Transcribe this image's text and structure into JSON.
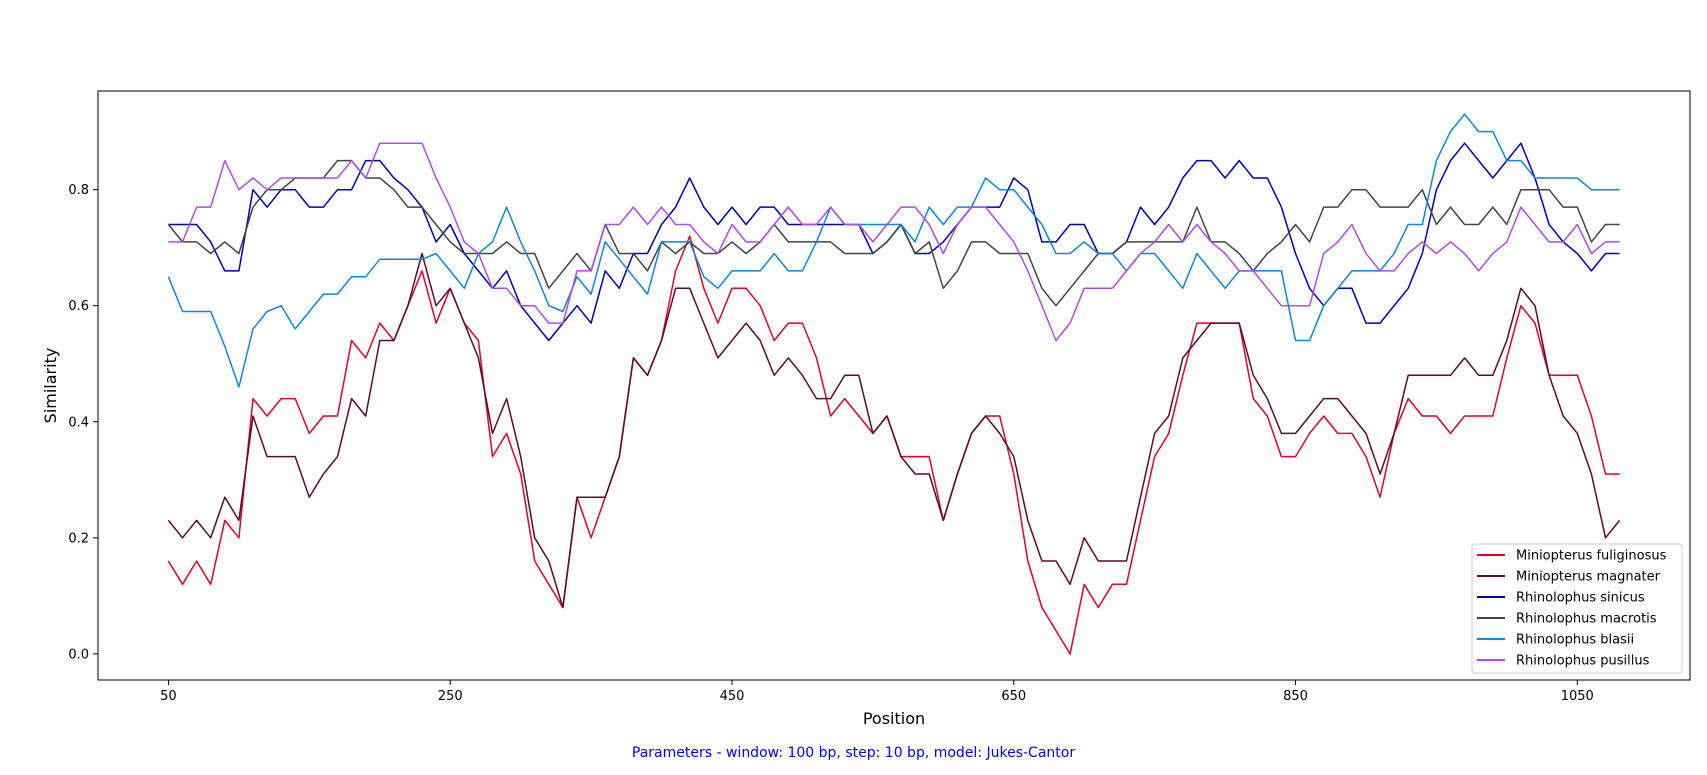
{
  "chart_data": {
    "type": "line",
    "title": "",
    "xlabel": "Position",
    "ylabel": "Similarity",
    "xlim": [
      0,
      1130
    ],
    "ylim": [
      -0.045,
      0.97
    ],
    "xticks": [
      50,
      250,
      450,
      650,
      850,
      1050
    ],
    "yticks": [
      0.0,
      0.2,
      0.4,
      0.6,
      0.8
    ],
    "grid": false,
    "legend_position": "lower-right",
    "x": [
      50,
      60,
      70,
      80,
      90,
      100,
      110,
      120,
      130,
      140,
      150,
      160,
      170,
      180,
      190,
      200,
      210,
      220,
      230,
      240,
      250,
      260,
      270,
      280,
      290,
      300,
      310,
      320,
      330,
      340,
      350,
      360,
      370,
      380,
      390,
      400,
      410,
      420,
      430,
      440,
      450,
      460,
      470,
      480,
      490,
      500,
      510,
      520,
      530,
      540,
      550,
      560,
      570,
      580,
      590,
      600,
      610,
      620,
      630,
      640,
      650,
      660,
      670,
      680,
      690,
      700,
      710,
      720,
      730,
      740,
      750,
      760,
      770,
      780,
      790,
      800,
      810,
      820,
      830,
      840,
      850,
      860,
      870,
      880,
      890,
      900,
      910,
      920,
      930,
      940,
      950,
      960,
      970,
      980,
      990,
      1000,
      1010,
      1020,
      1030,
      1040,
      1050,
      1060,
      1070,
      1080
    ],
    "series": [
      {
        "name": "Miniopterus fuliginosus",
        "color": "#e3002a",
        "values": [
          0.16,
          0.12,
          0.16,
          0.12,
          0.23,
          0.2,
          0.44,
          0.41,
          0.44,
          0.44,
          0.38,
          0.41,
          0.41,
          0.54,
          0.51,
          0.57,
          0.54,
          0.6,
          0.66,
          0.57,
          0.63,
          0.57,
          0.54,
          0.34,
          0.38,
          0.31,
          0.16,
          0.12,
          0.08,
          0.27,
          0.2,
          0.27,
          0.34,
          0.51,
          0.48,
          0.54,
          0.66,
          0.72,
          0.63,
          0.57,
          0.63,
          0.63,
          0.6,
          0.54,
          0.57,
          0.57,
          0.51,
          0.41,
          0.44,
          0.41,
          0.38,
          0.41,
          0.34,
          0.34,
          0.34,
          0.23,
          0.31,
          0.38,
          0.41,
          0.41,
          0.31,
          0.16,
          0.08,
          0.04,
          0.0,
          0.12,
          0.08,
          0.12,
          0.12,
          0.23,
          0.34,
          0.38,
          0.48,
          0.57,
          0.57,
          0.57,
          0.57,
          0.44,
          0.41,
          0.34,
          0.34,
          0.38,
          0.41,
          0.38,
          0.38,
          0.34,
          0.27,
          0.38,
          0.44,
          0.41,
          0.41,
          0.38,
          0.41,
          0.41,
          0.41,
          0.51,
          0.6,
          0.57,
          0.48,
          0.48,
          0.48,
          0.41,
          0.31,
          0.31
        ]
      },
      {
        "name": "Miniopterus magnater",
        "color": "#5e0a2e",
        "values": [
          0.23,
          0.2,
          0.23,
          0.2,
          0.27,
          0.23,
          0.41,
          0.34,
          0.34,
          0.34,
          0.27,
          0.31,
          0.34,
          0.44,
          0.41,
          0.54,
          0.54,
          0.6,
          0.69,
          0.6,
          0.63,
          0.57,
          0.51,
          0.38,
          0.44,
          0.34,
          0.2,
          0.16,
          0.08,
          0.27,
          0.27,
          0.27,
          0.34,
          0.51,
          0.48,
          0.54,
          0.63,
          0.63,
          0.57,
          0.51,
          0.54,
          0.57,
          0.54,
          0.48,
          0.51,
          0.48,
          0.44,
          0.44,
          0.48,
          0.48,
          0.38,
          0.41,
          0.34,
          0.31,
          0.31,
          0.23,
          0.31,
          0.38,
          0.41,
          0.38,
          0.34,
          0.23,
          0.16,
          0.16,
          0.12,
          0.2,
          0.16,
          0.16,
          0.16,
          0.27,
          0.38,
          0.41,
          0.51,
          0.54,
          0.57,
          0.57,
          0.57,
          0.48,
          0.44,
          0.38,
          0.38,
          0.41,
          0.44,
          0.44,
          0.41,
          0.38,
          0.31,
          0.38,
          0.48,
          0.48,
          0.48,
          0.48,
          0.51,
          0.48,
          0.48,
          0.54,
          0.63,
          0.6,
          0.48,
          0.41,
          0.38,
          0.31,
          0.2,
          0.23
        ]
      },
      {
        "name": "Rhinolophus sinicus",
        "color": "#0000b4",
        "values": [
          0.74,
          0.74,
          0.74,
          0.71,
          0.66,
          0.66,
          0.8,
          0.77,
          0.8,
          0.8,
          0.77,
          0.77,
          0.8,
          0.8,
          0.85,
          0.85,
          0.82,
          0.8,
          0.77,
          0.71,
          0.74,
          0.69,
          0.66,
          0.63,
          0.66,
          0.6,
          0.57,
          0.54,
          0.57,
          0.6,
          0.57,
          0.66,
          0.63,
          0.69,
          0.69,
          0.74,
          0.77,
          0.82,
          0.77,
          0.74,
          0.77,
          0.74,
          0.77,
          0.77,
          0.74,
          0.74,
          0.74,
          0.74,
          0.74,
          0.74,
          0.69,
          0.71,
          0.74,
          0.69,
          0.69,
          0.71,
          0.74,
          0.77,
          0.77,
          0.77,
          0.82,
          0.8,
          0.71,
          0.71,
          0.74,
          0.74,
          0.69,
          0.69,
          0.71,
          0.77,
          0.74,
          0.77,
          0.82,
          0.85,
          0.85,
          0.82,
          0.85,
          0.82,
          0.82,
          0.77,
          0.69,
          0.63,
          0.6,
          0.63,
          0.63,
          0.57,
          0.57,
          0.6,
          0.63,
          0.69,
          0.8,
          0.85,
          0.88,
          0.85,
          0.82,
          0.85,
          0.88,
          0.82,
          0.74,
          0.71,
          0.69,
          0.66,
          0.69,
          0.69
        ]
      },
      {
        "name": "Rhinolophus macrotis",
        "color": "#444448",
        "values": [
          0.74,
          0.71,
          0.71,
          0.69,
          0.71,
          0.69,
          0.77,
          0.8,
          0.8,
          0.82,
          0.82,
          0.82,
          0.85,
          0.85,
          0.82,
          0.82,
          0.8,
          0.77,
          0.77,
          0.74,
          0.71,
          0.69,
          0.69,
          0.69,
          0.71,
          0.69,
          0.69,
          0.63,
          0.66,
          0.69,
          0.66,
          0.74,
          0.69,
          0.69,
          0.66,
          0.71,
          0.69,
          0.71,
          0.69,
          0.69,
          0.71,
          0.69,
          0.71,
          0.74,
          0.71,
          0.71,
          0.71,
          0.71,
          0.69,
          0.69,
          0.69,
          0.71,
          0.74,
          0.69,
          0.71,
          0.63,
          0.66,
          0.71,
          0.71,
          0.69,
          0.69,
          0.69,
          0.63,
          0.6,
          0.63,
          0.66,
          0.69,
          0.69,
          0.71,
          0.71,
          0.71,
          0.71,
          0.71,
          0.77,
          0.71,
          0.71,
          0.69,
          0.66,
          0.69,
          0.71,
          0.74,
          0.71,
          0.77,
          0.77,
          0.8,
          0.8,
          0.77,
          0.77,
          0.77,
          0.8,
          0.74,
          0.77,
          0.74,
          0.74,
          0.77,
          0.74,
          0.8,
          0.8,
          0.8,
          0.77,
          0.77,
          0.71,
          0.74,
          0.74
        ]
      },
      {
        "name": "Rhinolophus blasii",
        "color": "#0a88e0",
        "values": [
          0.65,
          0.59,
          0.59,
          0.59,
          0.53,
          0.46,
          0.56,
          0.59,
          0.6,
          0.56,
          0.59,
          0.62,
          0.62,
          0.65,
          0.65,
          0.68,
          0.68,
          0.68,
          0.68,
          0.69,
          0.66,
          0.63,
          0.69,
          0.71,
          0.77,
          0.71,
          0.66,
          0.6,
          0.59,
          0.65,
          0.62,
          0.71,
          0.68,
          0.65,
          0.62,
          0.71,
          0.71,
          0.71,
          0.65,
          0.63,
          0.66,
          0.66,
          0.66,
          0.69,
          0.66,
          0.66,
          0.71,
          0.77,
          0.74,
          0.74,
          0.74,
          0.74,
          0.74,
          0.71,
          0.77,
          0.74,
          0.77,
          0.77,
          0.82,
          0.8,
          0.8,
          0.77,
          0.74,
          0.69,
          0.69,
          0.71,
          0.69,
          0.69,
          0.66,
          0.69,
          0.69,
          0.66,
          0.63,
          0.69,
          0.66,
          0.63,
          0.66,
          0.66,
          0.66,
          0.66,
          0.54,
          0.54,
          0.6,
          0.63,
          0.66,
          0.66,
          0.66,
          0.69,
          0.74,
          0.74,
          0.85,
          0.9,
          0.93,
          0.9,
          0.9,
          0.85,
          0.85,
          0.82,
          0.82,
          0.82,
          0.82,
          0.8,
          0.8,
          0.8
        ]
      },
      {
        "name": "Rhinolophus pusillus",
        "color": "#b44ae8",
        "values": [
          0.71,
          0.71,
          0.77,
          0.77,
          0.85,
          0.8,
          0.82,
          0.8,
          0.82,
          0.82,
          0.82,
          0.82,
          0.82,
          0.85,
          0.82,
          0.88,
          0.88,
          0.88,
          0.88,
          0.82,
          0.77,
          0.71,
          0.69,
          0.63,
          0.63,
          0.6,
          0.6,
          0.57,
          0.57,
          0.66,
          0.66,
          0.74,
          0.74,
          0.77,
          0.74,
          0.77,
          0.74,
          0.74,
          0.71,
          0.69,
          0.74,
          0.71,
          0.71,
          0.74,
          0.77,
          0.74,
          0.74,
          0.77,
          0.74,
          0.74,
          0.71,
          0.74,
          0.77,
          0.77,
          0.74,
          0.69,
          0.74,
          0.77,
          0.77,
          0.74,
          0.71,
          0.66,
          0.6,
          0.54,
          0.57,
          0.63,
          0.63,
          0.63,
          0.66,
          0.69,
          0.71,
          0.74,
          0.71,
          0.74,
          0.71,
          0.69,
          0.66,
          0.66,
          0.63,
          0.6,
          0.6,
          0.6,
          0.69,
          0.71,
          0.74,
          0.69,
          0.66,
          0.66,
          0.69,
          0.71,
          0.69,
          0.71,
          0.69,
          0.66,
          0.69,
          0.71,
          0.77,
          0.74,
          0.71,
          0.71,
          0.74,
          0.69,
          0.71,
          0.71
        ]
      }
    ]
  },
  "caption": "Parameters - window: 100 bp, step: 10 bp, model: Jukes-Cantor"
}
